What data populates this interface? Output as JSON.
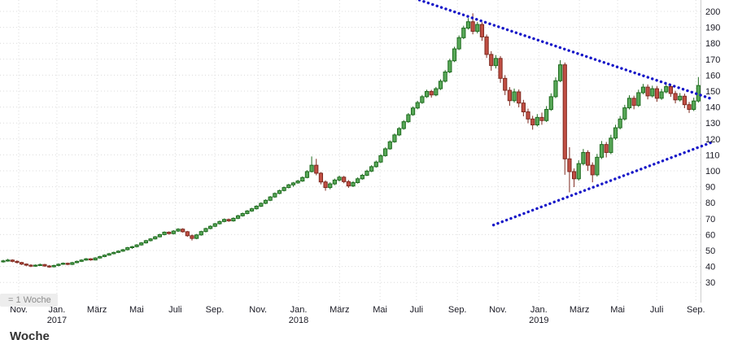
{
  "legend": {
    "timeframe_label": "= 1 Woche"
  },
  "footer": {
    "clipped_text": "Woche"
  },
  "chart_data": {
    "type": "candlestick",
    "title": "",
    "interval": "1 Woche",
    "y_axis": {
      "side": "right",
      "min": 30,
      "max": 200,
      "tick_step": 10,
      "ticks": [
        200,
        190,
        180,
        170,
        160,
        150,
        140,
        130,
        120,
        110,
        100,
        90,
        80,
        70,
        60,
        50,
        40,
        30
      ]
    },
    "x_axis": {
      "ticks": [
        {
          "label": "Nov.",
          "week": 3
        },
        {
          "label": "Jan.",
          "week": 11.3,
          "year": "2017"
        },
        {
          "label": "März",
          "week": 20
        },
        {
          "label": "Mai",
          "week": 28.6
        },
        {
          "label": "Juli",
          "week": 37
        },
        {
          "label": "Sep.",
          "week": 45.6
        },
        {
          "label": "Nov.",
          "week": 55
        },
        {
          "label": "Jan.",
          "week": 63.8,
          "year": "2018"
        },
        {
          "label": "März",
          "week": 72.7
        },
        {
          "label": "Mai",
          "week": 81.5
        },
        {
          "label": "Juli",
          "week": 89.4
        },
        {
          "label": "Sep.",
          "week": 98.3
        },
        {
          "label": "Nov.",
          "week": 107.1
        },
        {
          "label": "Jan.",
          "week": 116,
          "year": "2019"
        },
        {
          "label": "März",
          "week": 124.8
        },
        {
          "label": "Mai",
          "week": 133.1
        },
        {
          "label": "Juli",
          "week": 141.6
        },
        {
          "label": "Sep.",
          "week": 150.1
        }
      ]
    },
    "candles_ohlc": [
      [
        43.0,
        44.2,
        42.4,
        43.5
      ],
      [
        43.5,
        44.8,
        43.0,
        44.0
      ],
      [
        44.0,
        44.5,
        42.6,
        43.2
      ],
      [
        43.2,
        43.8,
        41.9,
        42.5
      ],
      [
        42.5,
        42.9,
        40.9,
        41.5
      ],
      [
        41.5,
        41.9,
        40.2,
        40.8
      ],
      [
        40.8,
        41.4,
        39.6,
        40.2
      ],
      [
        40.2,
        41.3,
        39.8,
        40.8
      ],
      [
        40.8,
        41.8,
        40.3,
        41.2
      ],
      [
        41.2,
        41.6,
        39.8,
        40.3
      ],
      [
        40.3,
        40.9,
        39.2,
        39.8
      ],
      [
        39.8,
        41.1,
        39.4,
        40.6
      ],
      [
        40.6,
        41.9,
        40.1,
        41.4
      ],
      [
        41.4,
        42.5,
        41.0,
        42.0
      ],
      [
        42.0,
        42.4,
        40.8,
        41.3
      ],
      [
        41.3,
        42.9,
        40.9,
        42.4
      ],
      [
        42.4,
        43.7,
        42.0,
        43.2
      ],
      [
        43.2,
        44.5,
        42.8,
        44.0
      ],
      [
        44.0,
        45.3,
        43.6,
        44.8
      ],
      [
        44.8,
        45.2,
        43.6,
        44.1
      ],
      [
        44.1,
        45.8,
        43.8,
        45.3
      ],
      [
        45.3,
        46.7,
        45.0,
        46.2
      ],
      [
        46.2,
        47.6,
        45.8,
        47.1
      ],
      [
        47.1,
        48.5,
        46.8,
        48.0
      ],
      [
        48.0,
        49.3,
        47.6,
        48.8
      ],
      [
        48.8,
        50.1,
        48.4,
        49.6
      ],
      [
        49.6,
        51.0,
        49.2,
        50.5
      ],
      [
        50.5,
        52.3,
        50.1,
        51.8
      ],
      [
        51.8,
        52.9,
        51.0,
        52.4
      ],
      [
        52.4,
        54.0,
        52.0,
        53.5
      ],
      [
        53.5,
        55.3,
        53.1,
        54.8
      ],
      [
        54.8,
        56.7,
        54.4,
        56.2
      ],
      [
        56.2,
        57.8,
        55.7,
        57.3
      ],
      [
        57.3,
        59.1,
        56.9,
        58.6
      ],
      [
        58.6,
        60.5,
        58.2,
        60.0
      ],
      [
        60.0,
        62.0,
        59.5,
        61.5
      ],
      [
        61.5,
        62.0,
        60.0,
        60.6
      ],
      [
        60.6,
        62.8,
        60.1,
        62.2
      ],
      [
        62.2,
        64.0,
        61.7,
        63.4
      ],
      [
        63.4,
        64.0,
        61.2,
        61.8
      ],
      [
        61.8,
        62.3,
        58.6,
        59.3
      ],
      [
        59.3,
        60.0,
        56.3,
        57.6
      ],
      [
        57.6,
        60.4,
        57.1,
        59.8
      ],
      [
        59.8,
        62.4,
        59.3,
        61.9
      ],
      [
        61.9,
        64.3,
        61.4,
        63.8
      ],
      [
        63.8,
        65.8,
        63.3,
        65.2
      ],
      [
        65.2,
        67.3,
        64.7,
        66.8
      ],
      [
        66.8,
        68.8,
        66.3,
        68.2
      ],
      [
        68.2,
        70.1,
        67.7,
        69.5
      ],
      [
        69.5,
        70.0,
        68.0,
        68.6
      ],
      [
        68.6,
        70.8,
        68.1,
        70.2
      ],
      [
        70.2,
        72.4,
        69.7,
        71.8
      ],
      [
        71.8,
        73.8,
        71.3,
        73.2
      ],
      [
        73.2,
        75.4,
        72.7,
        74.8
      ],
      [
        74.8,
        76.8,
        74.3,
        76.2
      ],
      [
        76.2,
        78.4,
        75.7,
        77.8
      ],
      [
        77.8,
        80.2,
        77.3,
        79.6
      ],
      [
        79.6,
        82.1,
        79.1,
        81.5
      ],
      [
        81.5,
        84.2,
        81.0,
        83.6
      ],
      [
        83.6,
        86.4,
        83.1,
        85.8
      ],
      [
        85.8,
        88.2,
        85.3,
        87.6
      ],
      [
        87.6,
        90.1,
        87.1,
        89.5
      ],
      [
        89.5,
        91.8,
        89.0,
        91.2
      ],
      [
        91.2,
        93.0,
        90.0,
        92.4
      ],
      [
        92.4,
        94.3,
        91.9,
        93.6
      ],
      [
        93.6,
        96.5,
        93.1,
        95.8
      ],
      [
        95.8,
        100.4,
        95.3,
        99.5
      ],
      [
        99.5,
        109.0,
        99.0,
        103.5
      ],
      [
        103.5,
        107.5,
        97.2,
        98.5
      ],
      [
        98.5,
        99.2,
        91.5,
        93.0
      ],
      [
        93.0,
        94.0,
        87.5,
        89.5
      ],
      [
        89.5,
        92.8,
        88.4,
        91.8
      ],
      [
        91.8,
        95.1,
        91.0,
        94.2
      ],
      [
        94.2,
        97.0,
        93.3,
        96.0
      ],
      [
        96.0,
        96.8,
        92.2,
        93.2
      ],
      [
        93.2,
        94.2,
        89.3,
        90.5
      ],
      [
        90.5,
        93.5,
        89.8,
        92.6
      ],
      [
        92.6,
        95.9,
        92.0,
        95.0
      ],
      [
        95.0,
        98.1,
        94.4,
        97.2
      ],
      [
        97.2,
        100.7,
        96.7,
        99.8
      ],
      [
        99.8,
        103.5,
        99.2,
        102.6
      ],
      [
        102.6,
        106.4,
        102.0,
        105.5
      ],
      [
        105.5,
        110.4,
        104.9,
        109.5
      ],
      [
        109.5,
        114.7,
        108.9,
        113.8
      ],
      [
        113.8,
        119.1,
        113.2,
        118.2
      ],
      [
        118.2,
        123.4,
        117.6,
        122.5
      ],
      [
        122.5,
        127.4,
        121.8,
        126.5
      ],
      [
        126.5,
        131.8,
        125.8,
        130.8
      ],
      [
        130.8,
        136.2,
        130.1,
        135.2
      ],
      [
        135.2,
        140.4,
        134.5,
        139.4
      ],
      [
        139.4,
        143.9,
        138.6,
        142.8
      ],
      [
        142.8,
        147.6,
        142.0,
        146.5
      ],
      [
        146.5,
        150.9,
        145.7,
        149.8
      ],
      [
        149.8,
        150.8,
        145.9,
        147.6
      ],
      [
        147.6,
        152.6,
        146.8,
        151.5
      ],
      [
        151.5,
        157.4,
        150.7,
        156.2
      ],
      [
        156.2,
        163.2,
        155.4,
        162.0
      ],
      [
        162.0,
        170.3,
        161.2,
        169.0
      ],
      [
        169.0,
        177.8,
        168.2,
        176.5
      ],
      [
        176.5,
        184.9,
        175.7,
        183.5
      ],
      [
        183.5,
        191.0,
        182.6,
        189.5
      ],
      [
        189.5,
        195.8,
        188.6,
        193.5
      ],
      [
        193.5,
        198.8,
        185.6,
        187.5
      ],
      [
        187.5,
        193.4,
        186.2,
        191.8
      ],
      [
        191.8,
        193.2,
        181.5,
        184.0
      ],
      [
        184.0,
        185.5,
        170.8,
        173.0
      ],
      [
        173.0,
        175.0,
        162.8,
        166.0
      ],
      [
        166.0,
        172.6,
        164.2,
        170.5
      ],
      [
        170.5,
        172.0,
        155.2,
        158.0
      ],
      [
        158.0,
        160.0,
        147.5,
        150.5
      ],
      [
        150.5,
        152.5,
        140.8,
        144.0
      ],
      [
        144.0,
        151.6,
        142.8,
        149.5
      ],
      [
        149.5,
        151.0,
        139.8,
        142.5
      ],
      [
        142.5,
        144.5,
        134.2,
        137.0
      ],
      [
        137.0,
        139.0,
        129.8,
        132.5
      ],
      [
        132.5,
        134.5,
        125.8,
        128.8
      ],
      [
        128.8,
        135.6,
        127.8,
        133.5
      ],
      [
        133.5,
        136.5,
        128.9,
        131.5
      ],
      [
        131.5,
        140.6,
        130.6,
        138.5
      ],
      [
        138.5,
        148.6,
        137.6,
        146.5
      ],
      [
        146.5,
        158.6,
        145.6,
        156.5
      ],
      [
        156.5,
        169.4,
        155.6,
        166.5
      ],
      [
        166.5,
        167.9,
        97.5,
        107.5
      ],
      [
        107.5,
        114.8,
        86.5,
        99.5
      ],
      [
        99.5,
        101.5,
        89.8,
        95.0
      ],
      [
        95.0,
        106.6,
        93.9,
        104.5
      ],
      [
        104.5,
        113.7,
        103.4,
        111.5
      ],
      [
        111.5,
        112.9,
        99.9,
        103.5
      ],
      [
        103.5,
        105.3,
        92.8,
        97.5
      ],
      [
        97.5,
        110.6,
        96.4,
        108.5
      ],
      [
        108.5,
        118.7,
        107.4,
        116.5
      ],
      [
        116.5,
        118.1,
        108.4,
        111.5
      ],
      [
        111.5,
        122.6,
        110.4,
        120.5
      ],
      [
        120.5,
        128.9,
        119.4,
        127.0
      ],
      [
        127.0,
        134.4,
        126.0,
        132.5
      ],
      [
        132.5,
        141.4,
        131.5,
        139.5
      ],
      [
        139.5,
        147.4,
        138.5,
        145.5
      ],
      [
        145.5,
        147.1,
        138.6,
        141.0
      ],
      [
        141.0,
        150.9,
        140.1,
        149.0
      ],
      [
        149.0,
        154.5,
        148.0,
        152.5
      ],
      [
        152.5,
        154.2,
        144.8,
        147.0
      ],
      [
        147.0,
        153.4,
        146.0,
        151.5
      ],
      [
        151.5,
        153.2,
        143.3,
        145.5
      ],
      [
        145.5,
        151.4,
        144.5,
        149.5
      ],
      [
        149.5,
        154.7,
        148.6,
        152.8
      ],
      [
        152.8,
        154.4,
        146.4,
        148.5
      ],
      [
        148.5,
        150.2,
        142.3,
        144.5
      ],
      [
        144.5,
        148.8,
        143.5,
        146.8
      ],
      [
        146.8,
        148.4,
        139.3,
        141.5
      ],
      [
        141.5,
        143.2,
        136.3,
        138.5
      ],
      [
        138.5,
        145.9,
        137.5,
        143.8
      ],
      [
        143.8,
        158.8,
        142.8,
        153.5
      ]
    ],
    "trendlines": [
      {
        "name": "descending-resistance-trendline",
        "from_week": 88.5,
        "from_price": 209,
        "to_week": 154,
        "to_price": 145,
        "style": "dotted"
      },
      {
        "name": "ascending-support-trendline",
        "from_week": 106.5,
        "from_price": 66,
        "to_week": 154,
        "to_price": 118,
        "style": "dotted"
      }
    ],
    "colors": {
      "background": "#ffffff",
      "up_fill": "#58a858",
      "up_border": "#1e6b1e",
      "down_fill": "#c14f44",
      "down_border": "#7e2a20",
      "grid": "#dcdcdc",
      "axis_text": "#1a1a24",
      "trendline": "#1616c8"
    }
  }
}
